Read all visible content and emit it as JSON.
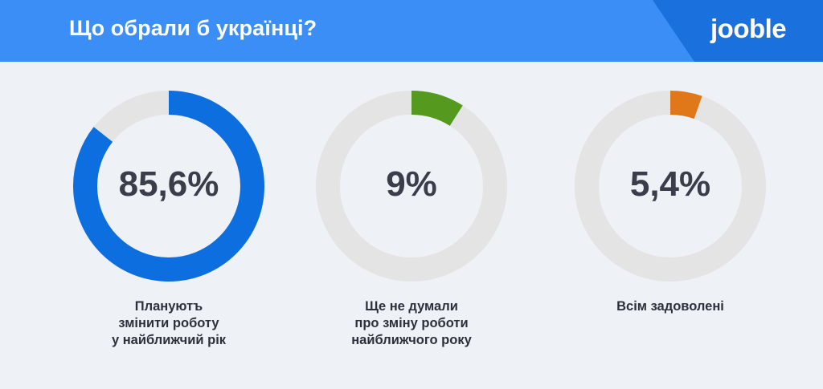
{
  "header": {
    "title": "Що обрали б українці?",
    "logo_text": "jooble",
    "band_color": "#3a8ef6",
    "logo_panel_color": "#1a70dd"
  },
  "chart_data": {
    "type": "pie",
    "title": "Що обрали б українці?",
    "slices": [
      {
        "value": 85.6,
        "value_label": "85,6%",
        "label_lines": [
          "Плануютъ",
          "змінити роботу",
          "у найближчий рік"
        ],
        "color": "#0d6fdf"
      },
      {
        "value": 9,
        "value_label": "9%",
        "label_lines": [
          "Ще не думали",
          "про зміну роботи",
          "найближчого року"
        ],
        "color": "#559a1e"
      },
      {
        "value": 5.4,
        "value_label": "5,4%",
        "label_lines": [
          "Всім задоволені"
        ],
        "color": "#e0781a"
      }
    ],
    "track_color": "#e4e4e4",
    "max": 100
  }
}
